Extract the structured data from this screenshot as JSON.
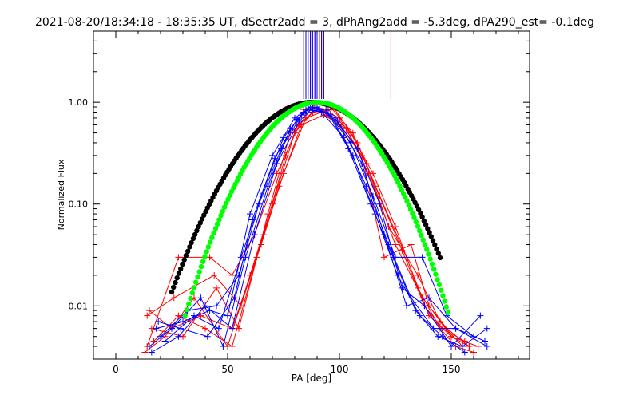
{
  "chart_data": {
    "type": "line",
    "title": "2021-08-20/18:34:18 - 18:35:35 UT, dSectr2add = 3, dPhAng2add = -5.3deg, dPA290_est= -0.1deg",
    "xlabel": "PA [deg]",
    "ylabel": "Normalized Flux",
    "xlim": [
      -10,
      185
    ],
    "ylim": [
      0.003,
      5.0
    ],
    "yscale": "log",
    "x_ticks": [
      0,
      50,
      100,
      150
    ],
    "x_tick_labels": [
      "0",
      "50",
      "100",
      "150"
    ],
    "y_ticks": [
      0.01,
      0.1,
      1.0
    ],
    "y_tick_labels": [
      "0.01",
      "0.10",
      "1.00"
    ],
    "grid": false,
    "legend": "none",
    "colors": {
      "red": "#ff0000",
      "blue": "#0000ff",
      "black": "#000000",
      "green": "#00ff00",
      "frame": "#000000"
    },
    "fit_curves": [
      {
        "color": "black",
        "center": 88,
        "sigma": 21.5,
        "peak": 1.0,
        "x_range": [
          25,
          145
        ]
      },
      {
        "color": "green",
        "center": 90,
        "sigma": 19.0,
        "peak": 1.0,
        "x_range": [
          31,
          149
        ]
      }
    ],
    "series": [
      {
        "color": "red",
        "x": [
          14,
          28,
          42,
          52,
          62,
          72,
          82,
          88,
          95,
          105,
          115,
          125,
          135,
          145,
          152,
          160
        ],
        "y": [
          0.004,
          0.03,
          0.03,
          0.02,
          0.05,
          0.2,
          0.6,
          0.9,
          0.85,
          0.5,
          0.2,
          0.06,
          0.015,
          0.006,
          0.004,
          0.0035
        ]
      },
      {
        "color": "red",
        "x": [
          15,
          25,
          38,
          52,
          65,
          75,
          85,
          92,
          100,
          110,
          120,
          132,
          140,
          150,
          158
        ],
        "y": [
          0.009,
          0.006,
          0.008,
          0.006,
          0.04,
          0.2,
          0.7,
          0.8,
          0.6,
          0.3,
          0.03,
          0.04,
          0.01,
          0.005,
          0.004
        ]
      },
      {
        "color": "red",
        "x": [
          13,
          22,
          35,
          50,
          60,
          70,
          80,
          90,
          100,
          112,
          122,
          135,
          145,
          155
        ],
        "y": [
          0.0035,
          0.005,
          0.012,
          0.004,
          0.02,
          0.1,
          0.5,
          0.9,
          0.7,
          0.25,
          0.06,
          0.02,
          0.007,
          0.004
        ]
      },
      {
        "color": "red",
        "x": [
          16,
          30,
          45,
          55,
          68,
          78,
          88,
          98,
          108,
          118,
          130,
          140,
          150,
          162
        ],
        "y": [
          0.006,
          0.005,
          0.015,
          0.006,
          0.08,
          0.5,
          0.8,
          0.85,
          0.4,
          0.12,
          0.03,
          0.008,
          0.005,
          0.004
        ]
      },
      {
        "color": "red",
        "x": [
          17,
          28,
          40,
          52,
          63,
          73,
          83,
          93,
          103,
          113,
          125,
          137,
          148,
          158
        ],
        "y": [
          0.0045,
          0.008,
          0.006,
          0.004,
          0.03,
          0.15,
          0.6,
          0.75,
          0.55,
          0.2,
          0.04,
          0.012,
          0.006,
          0.004
        ]
      },
      {
        "color": "red",
        "x": [
          14,
          26,
          44,
          56,
          66,
          76,
          84,
          90,
          96,
          106,
          116,
          128,
          138,
          146,
          156
        ],
        "y": [
          0.008,
          0.012,
          0.02,
          0.01,
          0.05,
          0.3,
          0.85,
          0.95,
          0.9,
          0.5,
          0.15,
          0.035,
          0.01,
          0.006,
          0.0045
        ]
      },
      {
        "color": "blue",
        "x": [
          15,
          25,
          38,
          48,
          58,
          68,
          78,
          85,
          92,
          102,
          112,
          122,
          132,
          142,
          152,
          165
        ],
        "y": [
          0.004,
          0.006,
          0.012,
          0.004,
          0.03,
          0.15,
          0.55,
          0.85,
          0.8,
          0.45,
          0.15,
          0.04,
          0.012,
          0.006,
          0.006,
          0.0045
        ]
      },
      {
        "color": "blue",
        "x": [
          18,
          30,
          42,
          50,
          60,
          70,
          80,
          87,
          94,
          104,
          114,
          124,
          134,
          144,
          155,
          166
        ],
        "y": [
          0.006,
          0.007,
          0.009,
          0.008,
          0.08,
          0.3,
          0.7,
          0.9,
          0.85,
          0.35,
          0.1,
          0.03,
          0.009,
          0.005,
          0.004,
          0.006
        ]
      },
      {
        "color": "blue",
        "x": [
          16,
          28,
          40,
          52,
          62,
          72,
          82,
          88,
          96,
          106,
          116,
          126,
          136,
          146,
          156
        ],
        "y": [
          0.0035,
          0.005,
          0.01,
          0.006,
          0.05,
          0.25,
          0.65,
          0.88,
          0.75,
          0.3,
          0.08,
          0.02,
          0.008,
          0.005,
          0.0035
        ]
      },
      {
        "color": "blue",
        "x": [
          20,
          32,
          45,
          55,
          65,
          75,
          84,
          90,
          98,
          108,
          118,
          128,
          138,
          150,
          163
        ],
        "y": [
          0.005,
          0.009,
          0.01,
          0.02,
          0.12,
          0.45,
          0.8,
          0.9,
          0.7,
          0.35,
          0.1,
          0.015,
          0.01,
          0.004,
          0.008
        ]
      },
      {
        "color": "blue",
        "x": [
          22,
          35,
          46,
          56,
          64,
          74,
          83,
          91,
          99,
          110,
          120,
          130,
          140,
          152,
          166
        ],
        "y": [
          0.0045,
          0.008,
          0.006,
          0.03,
          0.1,
          0.35,
          0.75,
          0.85,
          0.65,
          0.25,
          0.05,
          0.01,
          0.012,
          0.006,
          0.004
        ]
      },
      {
        "color": "blue",
        "x": [
          19,
          29,
          41,
          53,
          61,
          71,
          81,
          86,
          95,
          105,
          115,
          125,
          137,
          148,
          160
        ],
        "y": [
          0.007,
          0.006,
          0.005,
          0.012,
          0.07,
          0.28,
          0.68,
          0.86,
          0.78,
          0.4,
          0.12,
          0.03,
          0.03,
          0.008,
          0.005
        ]
      }
    ],
    "top_markers": {
      "red": [
        87,
        89,
        90,
        91,
        92,
        93,
        123
      ],
      "blue": [
        84,
        85,
        86,
        87,
        88,
        89,
        90,
        91,
        92,
        93
      ]
    }
  }
}
